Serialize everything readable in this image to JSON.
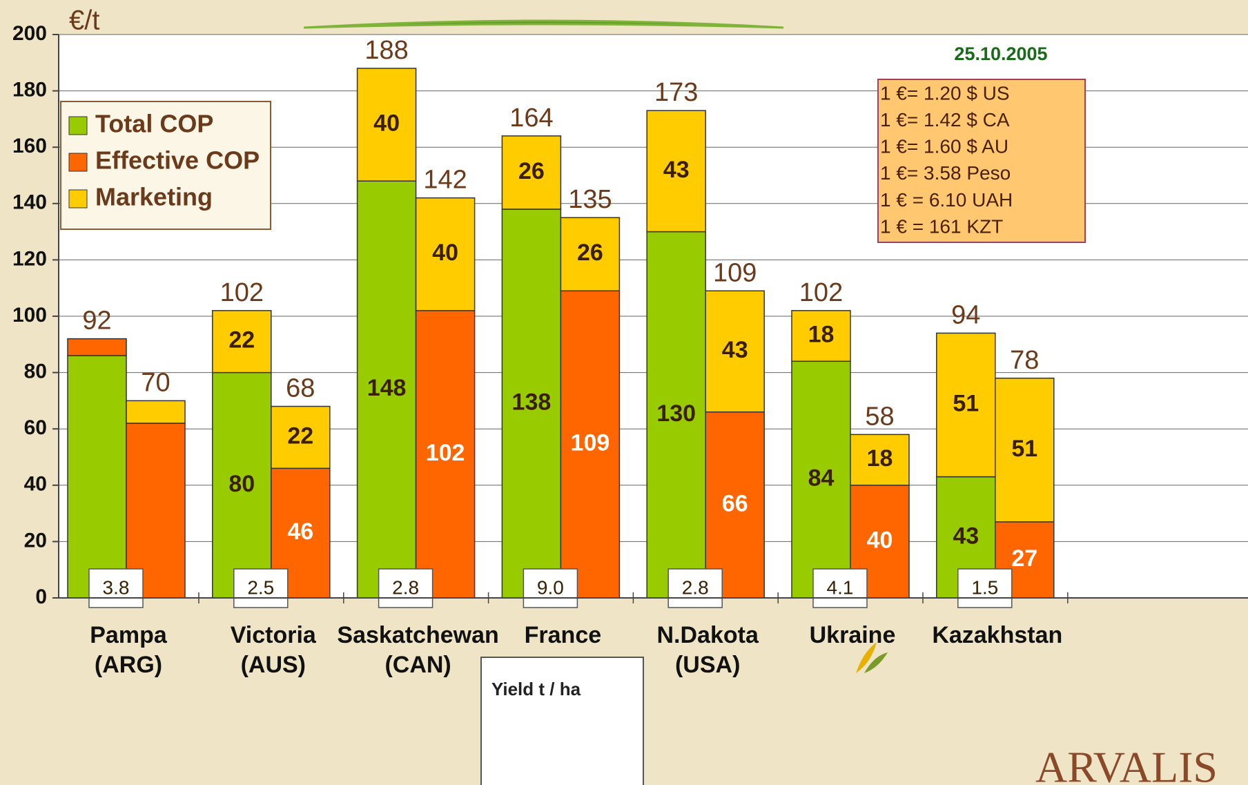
{
  "chart_data": {
    "type": "stacked_grouped_bar",
    "y_axis_label": "€/t",
    "date": "25.10.2005",
    "exchange_rates": [
      "1 €= 1.20 $ US",
      "1 €= 1.42 $ CA",
      "1 €= 1.60 $ AU",
      "1 €= 3.58 Peso",
      "1 € = 6.10 UAH",
      "1 € = 161 KZT"
    ],
    "series": [
      {
        "name": "Total COP",
        "color": "#99cc00"
      },
      {
        "name": "Effective COP",
        "color": "#ff6600"
      },
      {
        "name": "Marketing",
        "color": "#ffcc00"
      }
    ],
    "groups": [
      {
        "category": [
          "Pampa",
          "(ARG)"
        ],
        "yield": "3.8",
        "bars": [
          {
            "segments": [
              {
                "series": 0,
                "value": 86,
                "labeled": false
              },
              {
                "series": 1,
                "value": 6,
                "labeled": false
              }
            ],
            "total": 92
          },
          {
            "segments": [
              {
                "series": 1,
                "value": 62,
                "labeled": false
              },
              {
                "series": 2,
                "value": 8,
                "labeled": false
              }
            ],
            "total": 70
          }
        ]
      },
      {
        "category": [
          "Victoria",
          "(AUS)"
        ],
        "yield": "2.5",
        "bars": [
          {
            "segments": [
              {
                "series": 0,
                "value": 80
              },
              {
                "series": 2,
                "value": 22
              }
            ],
            "total": 102
          },
          {
            "segments": [
              {
                "series": 1,
                "value": 46
              },
              {
                "series": 2,
                "value": 22
              }
            ],
            "total": 68
          }
        ]
      },
      {
        "category": [
          "Saskatchewan",
          "(CAN)"
        ],
        "yield": "2.8",
        "bars": [
          {
            "segments": [
              {
                "series": 0,
                "value": 148
              },
              {
                "series": 2,
                "value": 40
              }
            ],
            "total": 188
          },
          {
            "segments": [
              {
                "series": 1,
                "value": 102
              },
              {
                "series": 2,
                "value": 40
              }
            ],
            "total": 142
          }
        ]
      },
      {
        "category": [
          "France"
        ],
        "yield": "9.0",
        "bars": [
          {
            "segments": [
              {
                "series": 0,
                "value": 138
              },
              {
                "series": 2,
                "value": 26
              }
            ],
            "total": 164
          },
          {
            "segments": [
              {
                "series": 1,
                "value": 109
              },
              {
                "series": 2,
                "value": 26
              }
            ],
            "total": 135
          }
        ]
      },
      {
        "category": [
          "N.Dakota",
          "(USA)"
        ],
        "yield": "2.8",
        "bars": [
          {
            "segments": [
              {
                "series": 0,
                "value": 130
              },
              {
                "series": 2,
                "value": 43
              }
            ],
            "total": 173
          },
          {
            "segments": [
              {
                "series": 1,
                "value": 66
              },
              {
                "series": 2,
                "value": 43
              }
            ],
            "total": 109
          }
        ]
      },
      {
        "category": [
          "Ukraine"
        ],
        "yield": "4.1",
        "bars": [
          {
            "segments": [
              {
                "series": 0,
                "value": 84
              },
              {
                "series": 2,
                "value": 18
              }
            ],
            "total": 102
          },
          {
            "segments": [
              {
                "series": 1,
                "value": 40
              },
              {
                "series": 2,
                "value": 18
              }
            ],
            "total": 58
          }
        ]
      },
      {
        "category": [
          "Kazakhstan"
        ],
        "yield": "1.5",
        "bars": [
          {
            "segments": [
              {
                "series": 0,
                "value": 43
              },
              {
                "series": 2,
                "value": 51
              }
            ],
            "total": 94
          },
          {
            "segments": [
              {
                "series": 1,
                "value": 27
              },
              {
                "series": 2,
                "value": 51
              }
            ],
            "total": 78
          }
        ]
      }
    ],
    "ylim": [
      0,
      200
    ],
    "yticks": [
      0,
      20,
      40,
      60,
      80,
      100,
      120,
      140,
      160,
      180,
      200
    ],
    "grid": true,
    "yield_legend": "Yield t / ha",
    "logo": "ARVALIS"
  }
}
